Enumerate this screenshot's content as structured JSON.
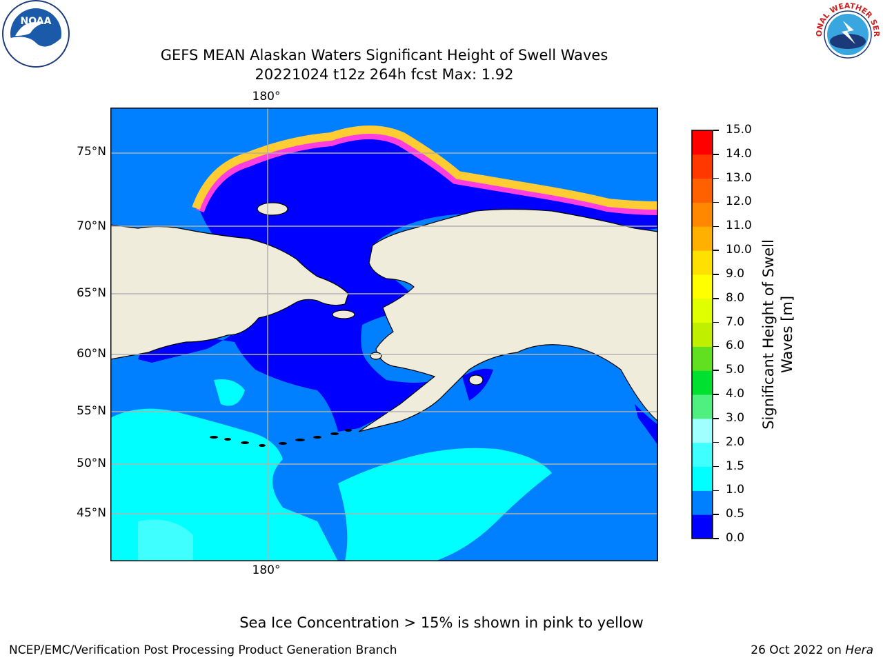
{
  "title": {
    "line1": "GEFS MEAN Alaskan Waters Significant Height of Swell Waves",
    "line2": "20221024 t12z 264h fcst   Max: 1.92"
  },
  "map": {
    "lat_labels": [
      "75°N",
      "70°N",
      "65°N",
      "60°N",
      "55°N",
      "50°N",
      "45°N"
    ],
    "lon_label_top": "180°",
    "lon_label_bottom": "180°",
    "colors": {
      "land": "#efecdc",
      "ocean_0_05": "#0000ff",
      "ocean_05_10": "#0080ff",
      "ocean_10_15": "#00ffff",
      "ocean_15_20": "#40ffff",
      "ice_pink": "#ff3ee0",
      "ice_yellow": "#ffcc33",
      "grid": "#b0b0b0",
      "coast": "#000000"
    }
  },
  "colorbar": {
    "ticks": [
      "0.0",
      "0.5",
      "1.0",
      "1.5",
      "2.0",
      "3.0",
      "4.0",
      "5.0",
      "6.0",
      "7.0",
      "8.0",
      "9.0",
      "10.0",
      "11.0",
      "12.0",
      "13.0",
      "14.0",
      "15.0"
    ],
    "colors": [
      "#0000ff",
      "#0080ff",
      "#00ffff",
      "#40ffff",
      "#a0ffff",
      "#50f080",
      "#00e030",
      "#60e020",
      "#c0f000",
      "#e0ff00",
      "#ffff00",
      "#ffe000",
      "#ffb000",
      "#ff8800",
      "#ff6000",
      "#ff3800",
      "#ff0000"
    ],
    "label_line1": "Significant Height of Swell",
    "label_line2": "Waves [m]"
  },
  "sea_ice_note": "Sea Ice Concentration > 15% is shown in pink to yellow",
  "footer": {
    "left": "NCEP/EMC/Verification Post Processing Product Generation Branch",
    "date": "26 Oct 2022 on ",
    "machine": "Hera"
  },
  "logos": {
    "noaa_text": "NOAA",
    "nws_text": "NATIONAL WEATHER SERVICE"
  }
}
